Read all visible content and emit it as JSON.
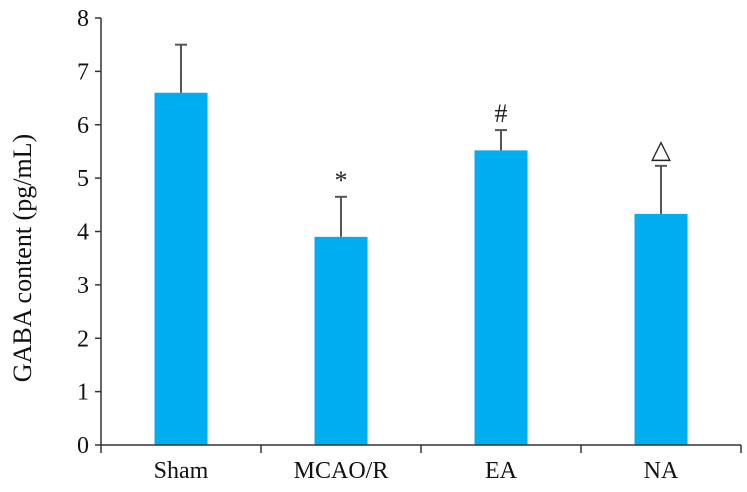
{
  "chart_data": {
    "type": "bar",
    "categories": [
      "Sham",
      "MCAO/R",
      "EA",
      "NA"
    ],
    "series": [
      {
        "values": [
          6.6,
          3.9,
          5.52,
          4.33
        ],
        "error": [
          0.9,
          0.75,
          0.38,
          0.9
        ],
        "annotations": [
          "",
          "*",
          "#",
          "△"
        ]
      }
    ],
    "title": "",
    "xlabel": "",
    "ylabel": "GABA content (pg/mL)",
    "ylim": [
      0,
      8
    ],
    "yticks": [
      0,
      1,
      2,
      3,
      4,
      5,
      6,
      7,
      8
    ],
    "grid": false,
    "legend": "none",
    "colors": {
      "bar": "#00AEEF",
      "axis": "#333333",
      "errorbar": "#555555"
    }
  }
}
